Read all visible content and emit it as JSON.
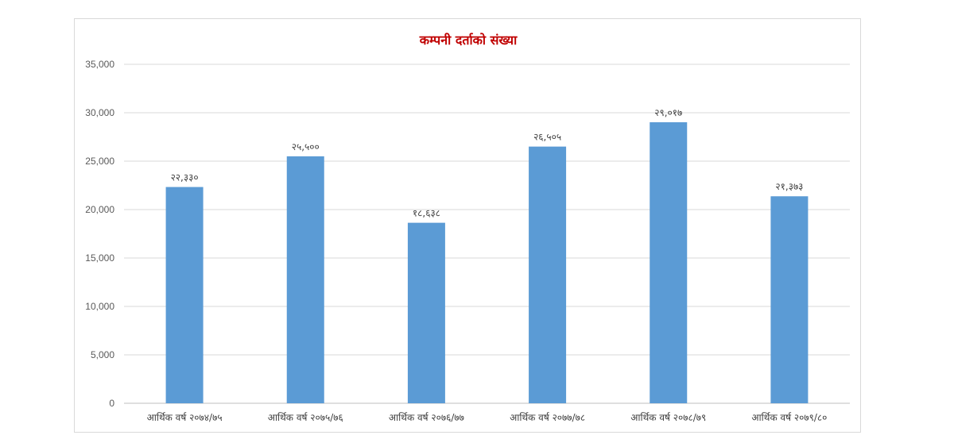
{
  "chart_data": {
    "type": "bar",
    "title": "कम्पनी दर्ताको संख्या",
    "xlabel": "",
    "ylabel": "",
    "categories": [
      "आर्थिक वर्ष २०७४/७५",
      "आर्थिक वर्ष २०७५/७६",
      "आर्थिक वर्ष २०७६/७७",
      "आर्थिक वर्ष २०७७/७८",
      "आर्थिक वर्ष २०७८/७९",
      "आर्थिक वर्ष २०७९/८०"
    ],
    "values": [
      22330,
      25500,
      18638,
      26505,
      29017,
      21373
    ],
    "data_labels": [
      "२२,३३०",
      "२५,५००",
      "१८,६३८",
      "२६,५०५",
      "२९,०१७",
      "२१,३७३"
    ],
    "ylim": [
      0,
      35000
    ],
    "yticks": [
      0,
      5000,
      10000,
      15000,
      20000,
      25000,
      30000,
      35000
    ],
    "ytick_labels": [
      "0",
      "5,000",
      "10,000",
      "15,000",
      "20,000",
      "25,000",
      "30,000",
      "35,000"
    ],
    "grid": true,
    "legend": "none",
    "bar_color": "#5b9bd5",
    "title_color": "#c00000"
  }
}
